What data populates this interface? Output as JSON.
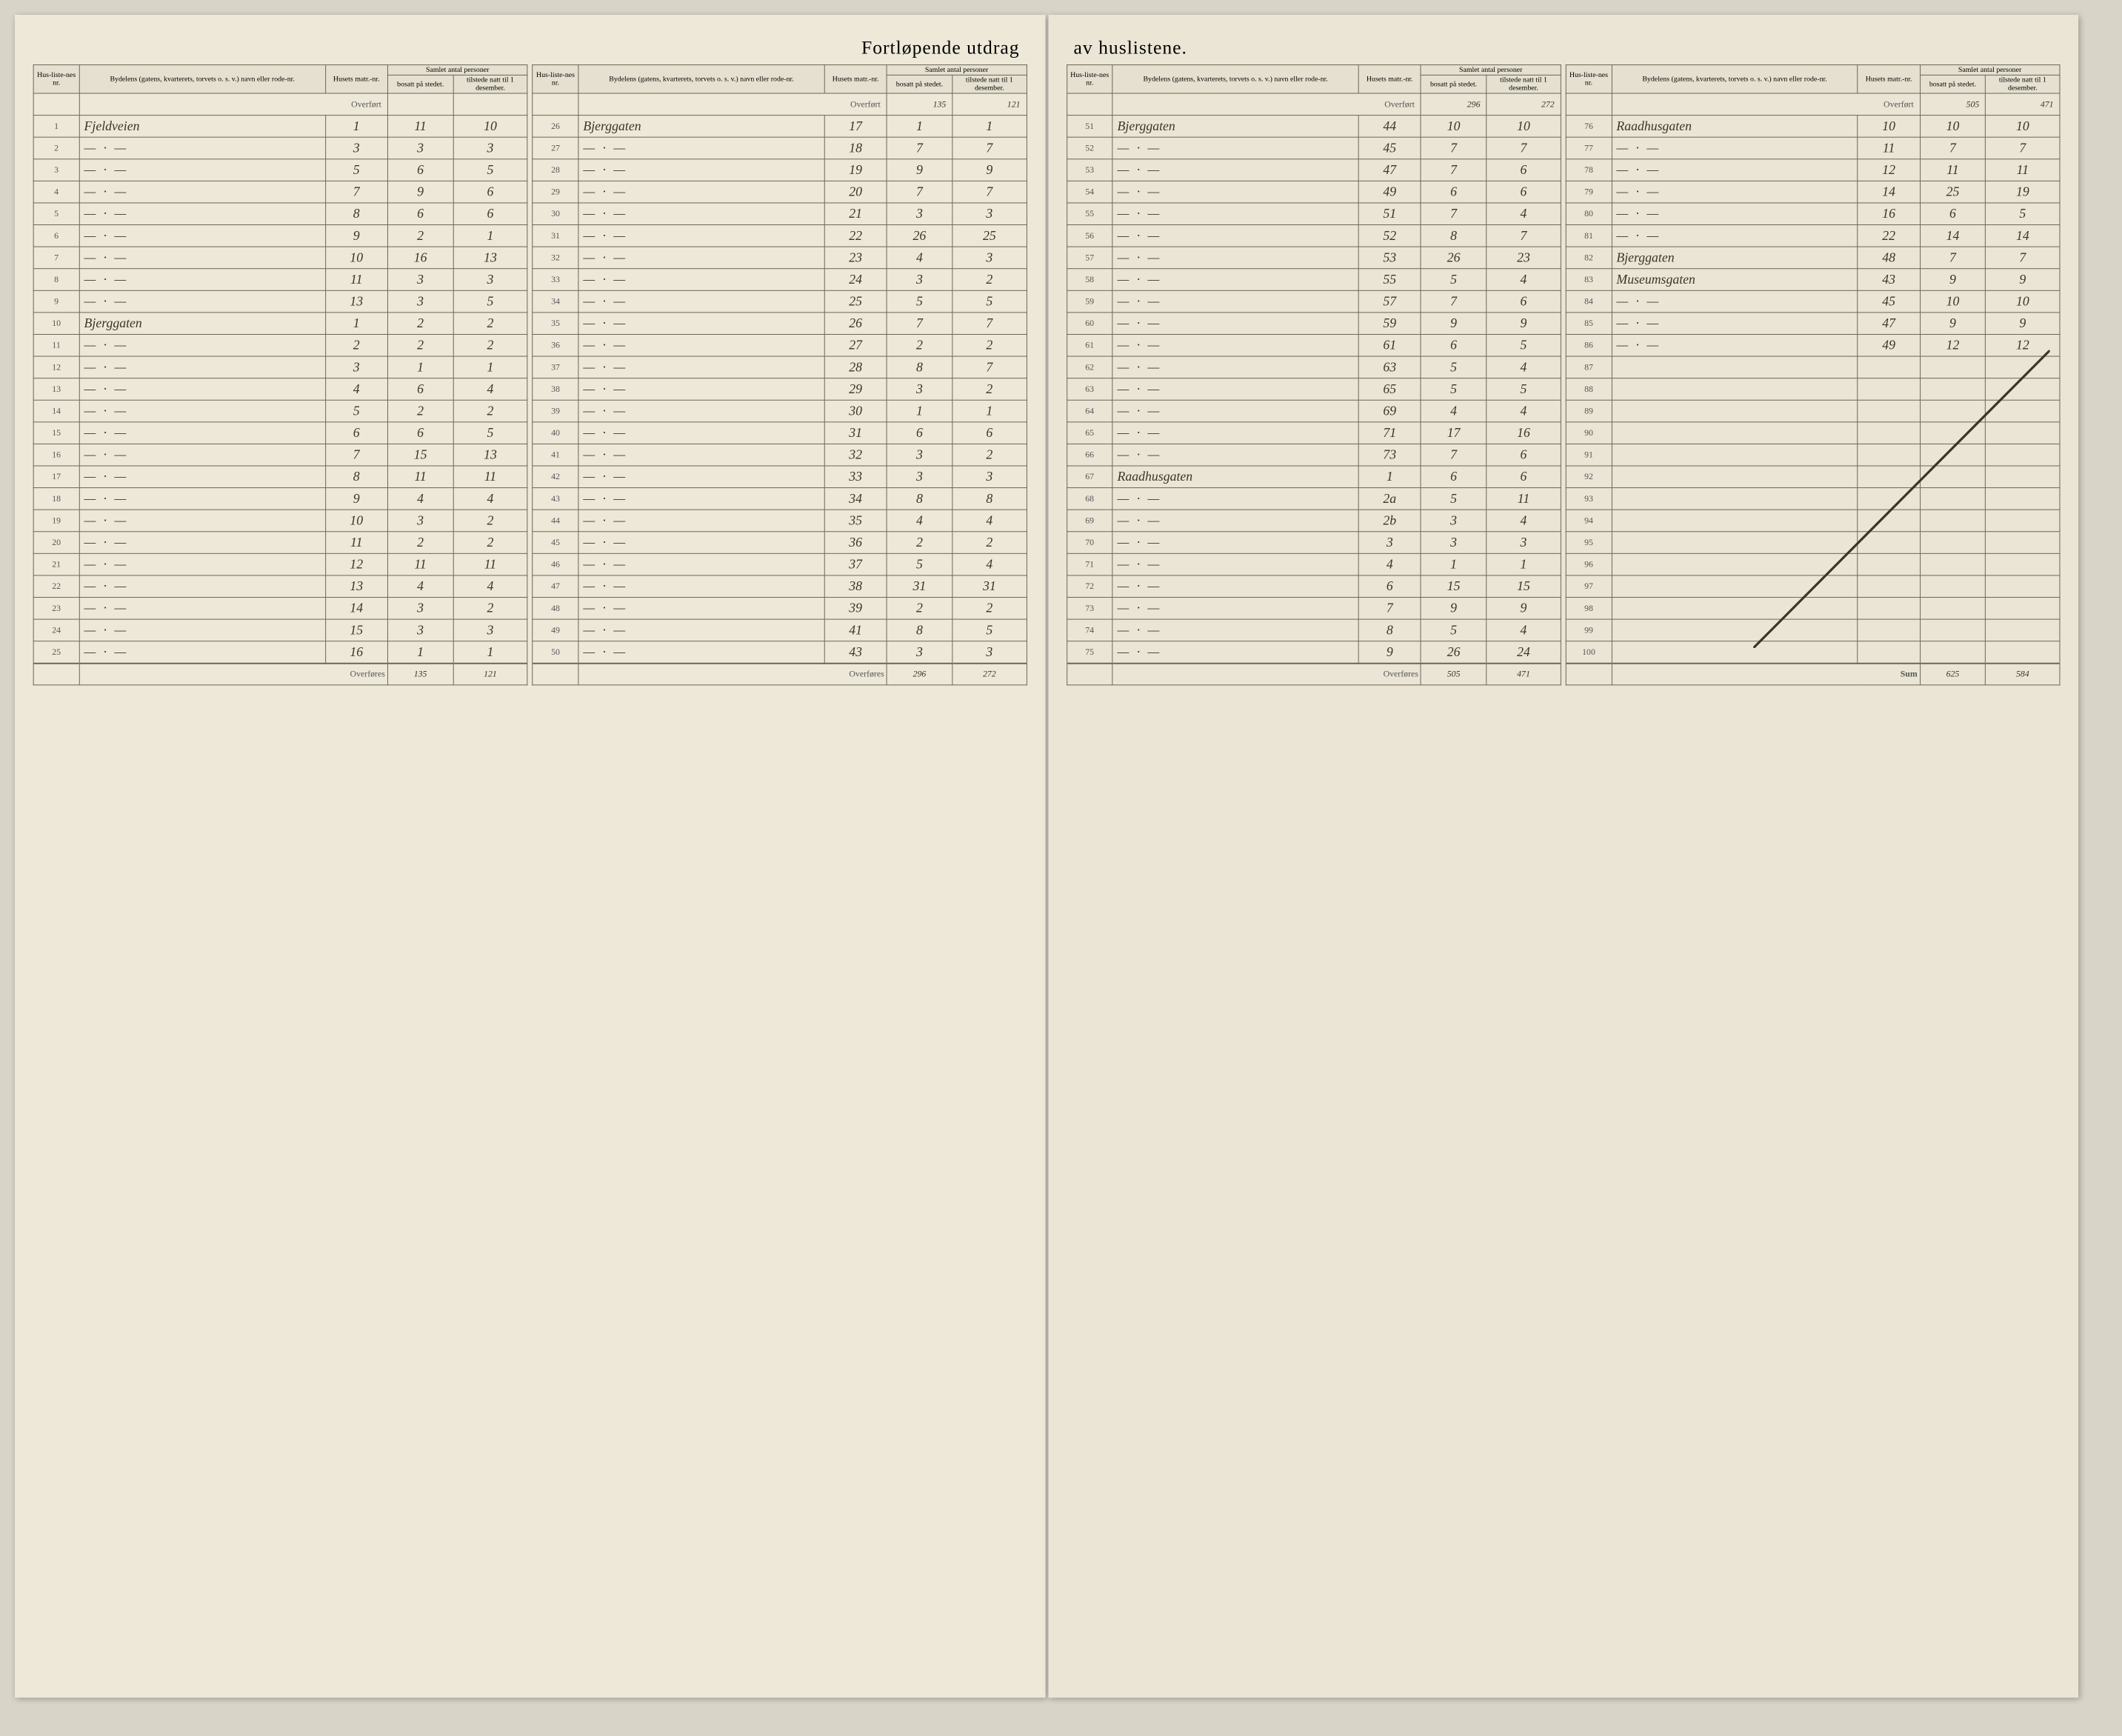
{
  "title_left": "Fortløpende utdrag",
  "title_right": "av huslistene.",
  "headers": {
    "nr": "Hus-liste-nes nr.",
    "name": "Bydelens (gatens, kvarterets, torvets o. s. v.) navn eller rode-nr.",
    "matr": "Husets matr.-nr.",
    "group": "Samlet antal personer",
    "bosatt": "bosatt på stedet.",
    "tilstede": "tilstede natt til 1 desember."
  },
  "overfort": "Overført",
  "overfores": "Overføres",
  "sum": "Sum",
  "streets": {
    "fjeldveien": "Fjeldveien",
    "bjerggaten": "Bjerggaten",
    "raadhusgaten": "Raadhusgaten",
    "museumsgaten": "Museumsgaten"
  },
  "ditto": "— · —",
  "columns": [
    {
      "overfort": [
        "",
        ""
      ],
      "rows": [
        {
          "nr": "1",
          "name": "Fjeldveien",
          "matr": "1",
          "b": "11",
          "t": "10"
        },
        {
          "nr": "2",
          "name": "—·—",
          "matr": "3",
          "b": "3",
          "t": "3"
        },
        {
          "nr": "3",
          "name": "—·—",
          "matr": "5",
          "b": "6",
          "t": "5"
        },
        {
          "nr": "4",
          "name": "—·—",
          "matr": "7",
          "b": "9",
          "t": "6"
        },
        {
          "nr": "5",
          "name": "—·—",
          "matr": "8",
          "b": "6",
          "t": "6"
        },
        {
          "nr": "6",
          "name": "—·—",
          "matr": "9",
          "b": "2",
          "t": "1"
        },
        {
          "nr": "7",
          "name": "—·—",
          "matr": "10",
          "b": "16",
          "t": "13"
        },
        {
          "nr": "8",
          "name": "—·—",
          "matr": "11",
          "b": "3",
          "t": "3"
        },
        {
          "nr": "9",
          "name": "—·—",
          "matr": "13",
          "b": "3",
          "t": "5"
        },
        {
          "nr": "10",
          "name": "Bjerggaten",
          "matr": "1",
          "b": "2",
          "t": "2"
        },
        {
          "nr": "11",
          "name": "—·—",
          "matr": "2",
          "b": "2",
          "t": "2"
        },
        {
          "nr": "12",
          "name": "—·—",
          "matr": "3",
          "b": "1",
          "t": "1"
        },
        {
          "nr": "13",
          "name": "—·—",
          "matr": "4",
          "b": "6",
          "t": "4"
        },
        {
          "nr": "14",
          "name": "—·—",
          "matr": "5",
          "b": "2",
          "t": "2"
        },
        {
          "nr": "15",
          "name": "—·—",
          "matr": "6",
          "b": "6",
          "t": "5"
        },
        {
          "nr": "16",
          "name": "—·—",
          "matr": "7",
          "b": "15",
          "t": "13"
        },
        {
          "nr": "17",
          "name": "—·—",
          "matr": "8",
          "b": "11",
          "t": "11"
        },
        {
          "nr": "18",
          "name": "—·—",
          "matr": "9",
          "b": "4",
          "t": "4"
        },
        {
          "nr": "19",
          "name": "—·—",
          "matr": "10",
          "b": "3",
          "t": "2"
        },
        {
          "nr": "20",
          "name": "—·—",
          "matr": "11",
          "b": "2",
          "t": "2"
        },
        {
          "nr": "21",
          "name": "—·—",
          "matr": "12",
          "b": "11",
          "t": "11"
        },
        {
          "nr": "22",
          "name": "—·—",
          "matr": "13",
          "b": "4",
          "t": "4"
        },
        {
          "nr": "23",
          "name": "—·—",
          "matr": "14",
          "b": "3",
          "t": "2"
        },
        {
          "nr": "24",
          "name": "—·—",
          "matr": "15",
          "b": "3",
          "t": "3"
        },
        {
          "nr": "25",
          "name": "—·—",
          "matr": "16",
          "b": "1",
          "t": "1"
        }
      ],
      "overfores": [
        "135",
        "121"
      ]
    },
    {
      "overfort": [
        "135",
        "121"
      ],
      "rows": [
        {
          "nr": "26",
          "name": "Bjerggaten",
          "matr": "17",
          "b": "1",
          "t": "1"
        },
        {
          "nr": "27",
          "name": "—·—",
          "matr": "18",
          "b": "7",
          "t": "7"
        },
        {
          "nr": "28",
          "name": "—·—",
          "matr": "19",
          "b": "9",
          "t": "9"
        },
        {
          "nr": "29",
          "name": "—·—",
          "matr": "20",
          "b": "7",
          "t": "7"
        },
        {
          "nr": "30",
          "name": "—·—",
          "matr": "21",
          "b": "3",
          "t": "3"
        },
        {
          "nr": "31",
          "name": "—·—",
          "matr": "22",
          "b": "26",
          "t": "25"
        },
        {
          "nr": "32",
          "name": "—·—",
          "matr": "23",
          "b": "4",
          "t": "3"
        },
        {
          "nr": "33",
          "name": "—·—",
          "matr": "24",
          "b": "3",
          "t": "2"
        },
        {
          "nr": "34",
          "name": "—·—",
          "matr": "25",
          "b": "5",
          "t": "5"
        },
        {
          "nr": "35",
          "name": "—·—",
          "matr": "26",
          "b": "7",
          "t": "7"
        },
        {
          "nr": "36",
          "name": "—·—",
          "matr": "27",
          "b": "2",
          "t": "2"
        },
        {
          "nr": "37",
          "name": "—·—",
          "matr": "28",
          "b": "8",
          "t": "7"
        },
        {
          "nr": "38",
          "name": "—·—",
          "matr": "29",
          "b": "3",
          "t": "2"
        },
        {
          "nr": "39",
          "name": "—·—",
          "matr": "30",
          "b": "1",
          "t": "1"
        },
        {
          "nr": "40",
          "name": "—·—",
          "matr": "31",
          "b": "6",
          "t": "6"
        },
        {
          "nr": "41",
          "name": "—·—",
          "matr": "32",
          "b": "3",
          "t": "2"
        },
        {
          "nr": "42",
          "name": "—·—",
          "matr": "33",
          "b": "3",
          "t": "3"
        },
        {
          "nr": "43",
          "name": "—·—",
          "matr": "34",
          "b": "8",
          "t": "8"
        },
        {
          "nr": "44",
          "name": "—·—",
          "matr": "35",
          "b": "4",
          "t": "4"
        },
        {
          "nr": "45",
          "name": "—·—",
          "matr": "36",
          "b": "2",
          "t": "2"
        },
        {
          "nr": "46",
          "name": "—·—",
          "matr": "37",
          "b": "5",
          "t": "4"
        },
        {
          "nr": "47",
          "name": "—·—",
          "matr": "38",
          "b": "31",
          "t": "31"
        },
        {
          "nr": "48",
          "name": "—·—",
          "matr": "39",
          "b": "2",
          "t": "2"
        },
        {
          "nr": "49",
          "name": "—·—",
          "matr": "41",
          "b": "8",
          "t": "5"
        },
        {
          "nr": "50",
          "name": "—·—",
          "matr": "43",
          "b": "3",
          "t": "3"
        }
      ],
      "overfores": [
        "296",
        "272"
      ]
    },
    {
      "overfort": [
        "296",
        "272"
      ],
      "rows": [
        {
          "nr": "51",
          "name": "Bjerggaten",
          "matr": "44",
          "b": "10",
          "t": "10"
        },
        {
          "nr": "52",
          "name": "—·—",
          "matr": "45",
          "b": "7",
          "t": "7"
        },
        {
          "nr": "53",
          "name": "—·—",
          "matr": "47",
          "b": "7",
          "t": "6"
        },
        {
          "nr": "54",
          "name": "—·—",
          "matr": "49",
          "b": "6",
          "t": "6"
        },
        {
          "nr": "55",
          "name": "—·—",
          "matr": "51",
          "b": "7",
          "t": "4"
        },
        {
          "nr": "56",
          "name": "—·—",
          "matr": "52",
          "b": "8",
          "t": "7"
        },
        {
          "nr": "57",
          "name": "—·—",
          "matr": "53",
          "b": "26",
          "t": "23"
        },
        {
          "nr": "58",
          "name": "—·—",
          "matr": "55",
          "b": "5",
          "t": "4"
        },
        {
          "nr": "59",
          "name": "—·—",
          "matr": "57",
          "b": "7",
          "t": "6"
        },
        {
          "nr": "60",
          "name": "—·—",
          "matr": "59",
          "b": "9",
          "t": "9"
        },
        {
          "nr": "61",
          "name": "—·—",
          "matr": "61",
          "b": "6",
          "t": "5"
        },
        {
          "nr": "62",
          "name": "—·—",
          "matr": "63",
          "b": "5",
          "t": "4"
        },
        {
          "nr": "63",
          "name": "—·—",
          "matr": "65",
          "b": "5",
          "t": "5"
        },
        {
          "nr": "64",
          "name": "—·—",
          "matr": "69",
          "b": "4",
          "t": "4"
        },
        {
          "nr": "65",
          "name": "—·—",
          "matr": "71",
          "b": "17",
          "t": "16"
        },
        {
          "nr": "66",
          "name": "—·—",
          "matr": "73",
          "b": "7",
          "t": "6"
        },
        {
          "nr": "67",
          "name": "Raadhusgaten",
          "matr": "1",
          "b": "6",
          "t": "6"
        },
        {
          "nr": "68",
          "name": "—·—",
          "matr": "2a",
          "b": "5",
          "t": "11"
        },
        {
          "nr": "69",
          "name": "—·—",
          "matr": "2b",
          "b": "3",
          "t": "4"
        },
        {
          "nr": "70",
          "name": "—·—",
          "matr": "3",
          "b": "3",
          "t": "3"
        },
        {
          "nr": "71",
          "name": "—·—",
          "matr": "4",
          "b": "1",
          "t": "1"
        },
        {
          "nr": "72",
          "name": "—·—",
          "matr": "6",
          "b": "15",
          "t": "15"
        },
        {
          "nr": "73",
          "name": "—·—",
          "matr": "7",
          "b": "9",
          "t": "9"
        },
        {
          "nr": "74",
          "name": "—·—",
          "matr": "8",
          "b": "5",
          "t": "4"
        },
        {
          "nr": "75",
          "name": "—·—",
          "matr": "9",
          "b": "26",
          "t": "24"
        }
      ],
      "overfores": [
        "505",
        "471"
      ]
    },
    {
      "overfort": [
        "505",
        "471"
      ],
      "rows": [
        {
          "nr": "76",
          "name": "Raadhusgaten",
          "matr": "10",
          "b": "10",
          "t": "10"
        },
        {
          "nr": "77",
          "name": "—·—",
          "matr": "11",
          "b": "7",
          "t": "7"
        },
        {
          "nr": "78",
          "name": "—·—",
          "matr": "12",
          "b": "11",
          "t": "11"
        },
        {
          "nr": "79",
          "name": "—·—",
          "matr": "14",
          "b": "25",
          "t": "19"
        },
        {
          "nr": "80",
          "name": "—·—",
          "matr": "16",
          "b": "6",
          "t": "5"
        },
        {
          "nr": "81",
          "name": "—·—",
          "matr": "22",
          "b": "14",
          "t": "14"
        },
        {
          "nr": "82",
          "name": "Bjerggaten",
          "matr": "48",
          "b": "7",
          "t": "7"
        },
        {
          "nr": "83",
          "name": "Museumsgaten",
          "matr": "43",
          "b": "9",
          "t": "9"
        },
        {
          "nr": "84",
          "name": "—·—",
          "matr": "45",
          "b": "10",
          "t": "10"
        },
        {
          "nr": "85",
          "name": "—·—",
          "matr": "47",
          "b": "9",
          "t": "9"
        },
        {
          "nr": "86",
          "name": "—·—",
          "matr": "49",
          "b": "12",
          "t": "12"
        },
        {
          "nr": "87",
          "name": "",
          "matr": "",
          "b": "",
          "t": ""
        },
        {
          "nr": "88",
          "name": "",
          "matr": "",
          "b": "",
          "t": ""
        },
        {
          "nr": "89",
          "name": "",
          "matr": "",
          "b": "",
          "t": ""
        },
        {
          "nr": "90",
          "name": "",
          "matr": "",
          "b": "",
          "t": ""
        },
        {
          "nr": "91",
          "name": "",
          "matr": "",
          "b": "",
          "t": ""
        },
        {
          "nr": "92",
          "name": "",
          "matr": "",
          "b": "",
          "t": ""
        },
        {
          "nr": "93",
          "name": "",
          "matr": "",
          "b": "",
          "t": ""
        },
        {
          "nr": "94",
          "name": "",
          "matr": "",
          "b": "",
          "t": ""
        },
        {
          "nr": "95",
          "name": "",
          "matr": "",
          "b": "",
          "t": ""
        },
        {
          "nr": "96",
          "name": "",
          "matr": "",
          "b": "",
          "t": ""
        },
        {
          "nr": "97",
          "name": "",
          "matr": "",
          "b": "",
          "t": ""
        },
        {
          "nr": "98",
          "name": "",
          "matr": "",
          "b": "",
          "t": ""
        },
        {
          "nr": "99",
          "name": "",
          "matr": "",
          "b": "",
          "t": ""
        },
        {
          "nr": "100",
          "name": "",
          "matr": "",
          "b": "",
          "t": ""
        }
      ],
      "sum": [
        "625",
        "584"
      ],
      "has_diagonal": true
    }
  ]
}
